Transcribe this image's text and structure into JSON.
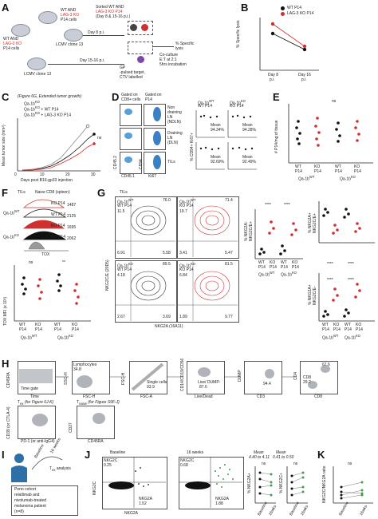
{
  "panels": {
    "A": "A",
    "B": "B",
    "C": "C",
    "D": "D",
    "E": "E",
    "F": "F",
    "G": "G",
    "H": "H",
    "I": "I",
    "J": "J",
    "K": "K"
  },
  "a": {
    "top_cells_1": "WT AND",
    "top_cells_2": "LAG-3 KO",
    "top_cells_3": "P14 cells",
    "left_cells_1": "WT AND",
    "left_cells_2": "LAG-3 KO",
    "left_cells_3": "P14 cells",
    "lcmv1": "LCMV clone 13",
    "lcmv2": "LCMV clone 13",
    "day8": "Day 8 p.i.",
    "day15": "Day 15-16 p.i.",
    "sorted_1": "Sorted WT AND",
    "sorted_2": "LAG-3 KO P14",
    "sorted_3": "(Day 8 & 15-16 p.i.)",
    "target_1": "GP",
    "target_2": "-pulsed target,",
    "target_3": "CTV labelled",
    "coculture_1": "Co-culture",
    "coculture_2": "E:T at 2:1",
    "coculture_3": "5hrs incubation",
    "lysis_1": "% Specific",
    "lysis_2": "lysis"
  },
  "b": {
    "legend_wt": "WT P14",
    "legend_ko": "LAG-3 KO P14",
    "ylabel": "% Specific lysis",
    "x1": "Day 8",
    "x1b": "p.i.",
    "x2": "Day 16",
    "x2b": "p.i.",
    "colors": {
      "wt": "#111111",
      "ko": "#d03030"
    }
  },
  "c": {
    "ref": "(Figure 6G, Extended tumor growth)",
    "legend1": "Qa-1b",
    "legend1sup": "KO",
    "legend2": "Qa-1b",
    "legend2sup": "KO",
    "legend2b": " + WT P14",
    "legend3": "Qa-1b",
    "legend3sup": "KO",
    "legend3b": " + LAG-3 KO P14",
    "ylabel": "Mean tumor size (mm²)",
    "xlabel": "Days post B16-gp33 injection",
    "ns": "ns",
    "yticks": [
      "0",
      "50",
      "100",
      "150"
    ],
    "xticks": [
      "0",
      "10",
      "20",
      "30"
    ]
  },
  "d": {
    "gated1": "Gated on",
    "gated1b": "CD8+ cells",
    "gated2": "Gated on",
    "gated2b": "P14",
    "non_draining": "Non",
    "non_draining2": "draining",
    "non_draining3": "LN",
    "non_draining4": "(NDLN)",
    "draining": "Draining",
    "draining2": "LN",
    "draining3": "(DLN)",
    "tils": "TILs",
    "xaxis1": "CD45.1",
    "xaxis2": "Ki67",
    "yaxis1": "CD45.2",
    "yaxis2": "CD94",
    "ylabel_right": "% CD94+ Ki67+",
    "qa_wt": "Qa-1b",
    "qa_wt_sup": "WT",
    "qa_ko": "Qa-1b",
    "qa_ko_sup": "KO",
    "wt_p14": "WT P14",
    "ko_p14": "KO P14",
    "mean1": "Mean",
    "v1": "94.34%",
    "mean2": "Mean",
    "v2": "94.28%",
    "mean3": "Mean",
    "v3": "92.69%",
    "mean4": "Mean",
    "v4": "92.49%"
  },
  "e": {
    "ylabel": "# P14/mg of tissue",
    "x1": "WT",
    "x1b": "P14",
    "x2": "KO",
    "x2b": "P14",
    "x3": "WT",
    "x3b": "P14",
    "x4": "KO",
    "x4b": "P14",
    "g1": "Qa-1b",
    "g1sup": "WT",
    "g2": "Qa-1b",
    "g2sup": "KO",
    "ns": "ns"
  },
  "f": {
    "tils": "TILs",
    "naive": "Naive CD8 (spleen)",
    "row1": "Qa-1b",
    "row1sup": "WT",
    "row2": "Qa-1b",
    "row2sup": "KO",
    "ko_p14_1": "KO P14",
    "wt_p14_1": "WT P14",
    "ko_p14_2": "KO P14",
    "wt_p14_2": "WT P14",
    "mfi1": "1487",
    "mfi2": "2125",
    "mfi3": "1695",
    "mfi4": "2062",
    "xlabel": "TOX",
    "ylabel": "TOX MFI (x 10³)",
    "ns": "ns",
    "sig": "**",
    "x1": "WT",
    "x1b": "P14",
    "x2": "KO",
    "x2b": "P14",
    "x3": "WT",
    "x3b": "P14",
    "x4": "KO",
    "x4b": "P14",
    "g1": "Qa-1b",
    "g1sup": "WT",
    "g2": "Qa-1b",
    "g2sup": "KO"
  },
  "g": {
    "tils": "TILs",
    "q1_label": "Qa-1b",
    "q1_sup": "WT",
    "q1_p14": "WT P14",
    "q2_label": "Qa-1b",
    "q2_sup": "WT",
    "q2_p14": "KO P14",
    "q3_label": "Qa-1b",
    "q3_sup": "KO",
    "q3_p14": "WT P14",
    "q4_label": "Qa-1b",
    "q4_sup": "KO",
    "q4_p14": "KO P14",
    "p1": {
      "ul": "11.5",
      "ur": "76.0",
      "ll": "6.91",
      "lr": "5.58"
    },
    "p2": {
      "ul": "19.7",
      "ur": "71.4",
      "ll": "3.41",
      "lr": "5.47"
    },
    "p3": {
      "ul": "4.18",
      "ur": "89.5",
      "ll": "2.67",
      "lr": "3.69"
    },
    "p4": {
      "ul": "6.84",
      "ur": "81.5",
      "ll": "1.89",
      "lr": "9.77"
    },
    "xaxis": "NKG2A (16A11)",
    "yaxis": "NKG2C/E (20D5)",
    "ylabel_a": "% NKG2A-",
    "ylabel_a2": "NKG2C/E+",
    "ylabel_b": "% NKG2A+",
    "ylabel_b2": "NKG2C/E+",
    "ylabel_c": "% NKG2A+",
    "ylabel_c2": "NKG2C/E-",
    "sig": "****",
    "xw": "WT",
    "xwb": "P14",
    "xk": "KO",
    "xkb": "P14",
    "g1": "Qa-1b",
    "g1sup": "WT",
    "g2": "Qa-1b",
    "g2sup": "KO"
  },
  "h": {
    "time_gate": "Time gate",
    "time_axis": "Time",
    "cd45ra_axis": "CD45RA",
    "lymphocytes": "Lymphocytes",
    "lymph_v": "34.8",
    "ssc_h": "SSC-H",
    "fsc_h": "FSC-H",
    "single_cells": "Single cells",
    "single_v": "93.9",
    "fsc_a": "FSC-A",
    "fsc_h2": "FSC-H",
    "live_dump": "Live/ DUMP-",
    "live_v": "87.6",
    "cd14_axis": "CD14/CD19/CD56",
    "live_dead": "Live/Dead",
    "dump": "DUMP",
    "cd3_v": "94.4",
    "cd3": "CD3",
    "cd4": "CD4",
    "cd4_v": "67.6",
    "cd8_label": "CD8",
    "cd8_v": "29.2",
    "cd8": "CD8",
    "t_ex": "T",
    "t_ex_sub": "ex",
    "t_ex_fig": "(for Figure 6J-K)",
    "t_naive": "T",
    "t_naive_sub": "naive",
    "t_naive_fig": "(for Figure S9F-J)",
    "cd39_axis": "CD39 (or CTLA-4)",
    "pd1_axis": "PD-1 (or anti-IgG4)",
    "ccr7_axis": "CD27",
    "cd45ra2": "CD45RA"
  },
  "i": {
    "baseline": "Baseline",
    "weeks": "16 weeks",
    "analysis": "T",
    "analysis_sub": "ex",
    "analysis_b": " analysis",
    "cohort_1": "Penn cohort",
    "cohort_2": "relatlimab and",
    "cohort_3": "nivolumab-treated",
    "cohort_4": "melanoma patient",
    "cohort_5": "(n=8)"
  },
  "j": {
    "baseline": "Baseline",
    "weeks": "16 weeks",
    "nkg2c_1": "NKG2C",
    "nkg2c_1v": "0.25",
    "nkg2c_2": "NKG2C",
    "nkg2c_2v": "0.68",
    "nkg2a_1": "NKG2A",
    "nkg2a_1v": "1.52",
    "nkg2a_2": "NKG2A",
    "nkg2a_2v": "1.88",
    "yaxis": "NKG2C",
    "xaxis": "NKG2A",
    "mean_a": "Mean",
    "mean_a_v": "4.40 to 4.11",
    "mean_b": "Mean",
    "mean_b_v": "0.41 to 0.50",
    "ylabel_a": "% NKG2A+",
    "ylabel_b": "% NKG2C+",
    "ns": "ns",
    "x1": "Baseline",
    "x2": "16wks"
  },
  "k": {
    "ylabel": "NKG2C/NKG2A ratio",
    "ns": "ns",
    "x1": "Baseline",
    "x2": "16wks"
  }
}
